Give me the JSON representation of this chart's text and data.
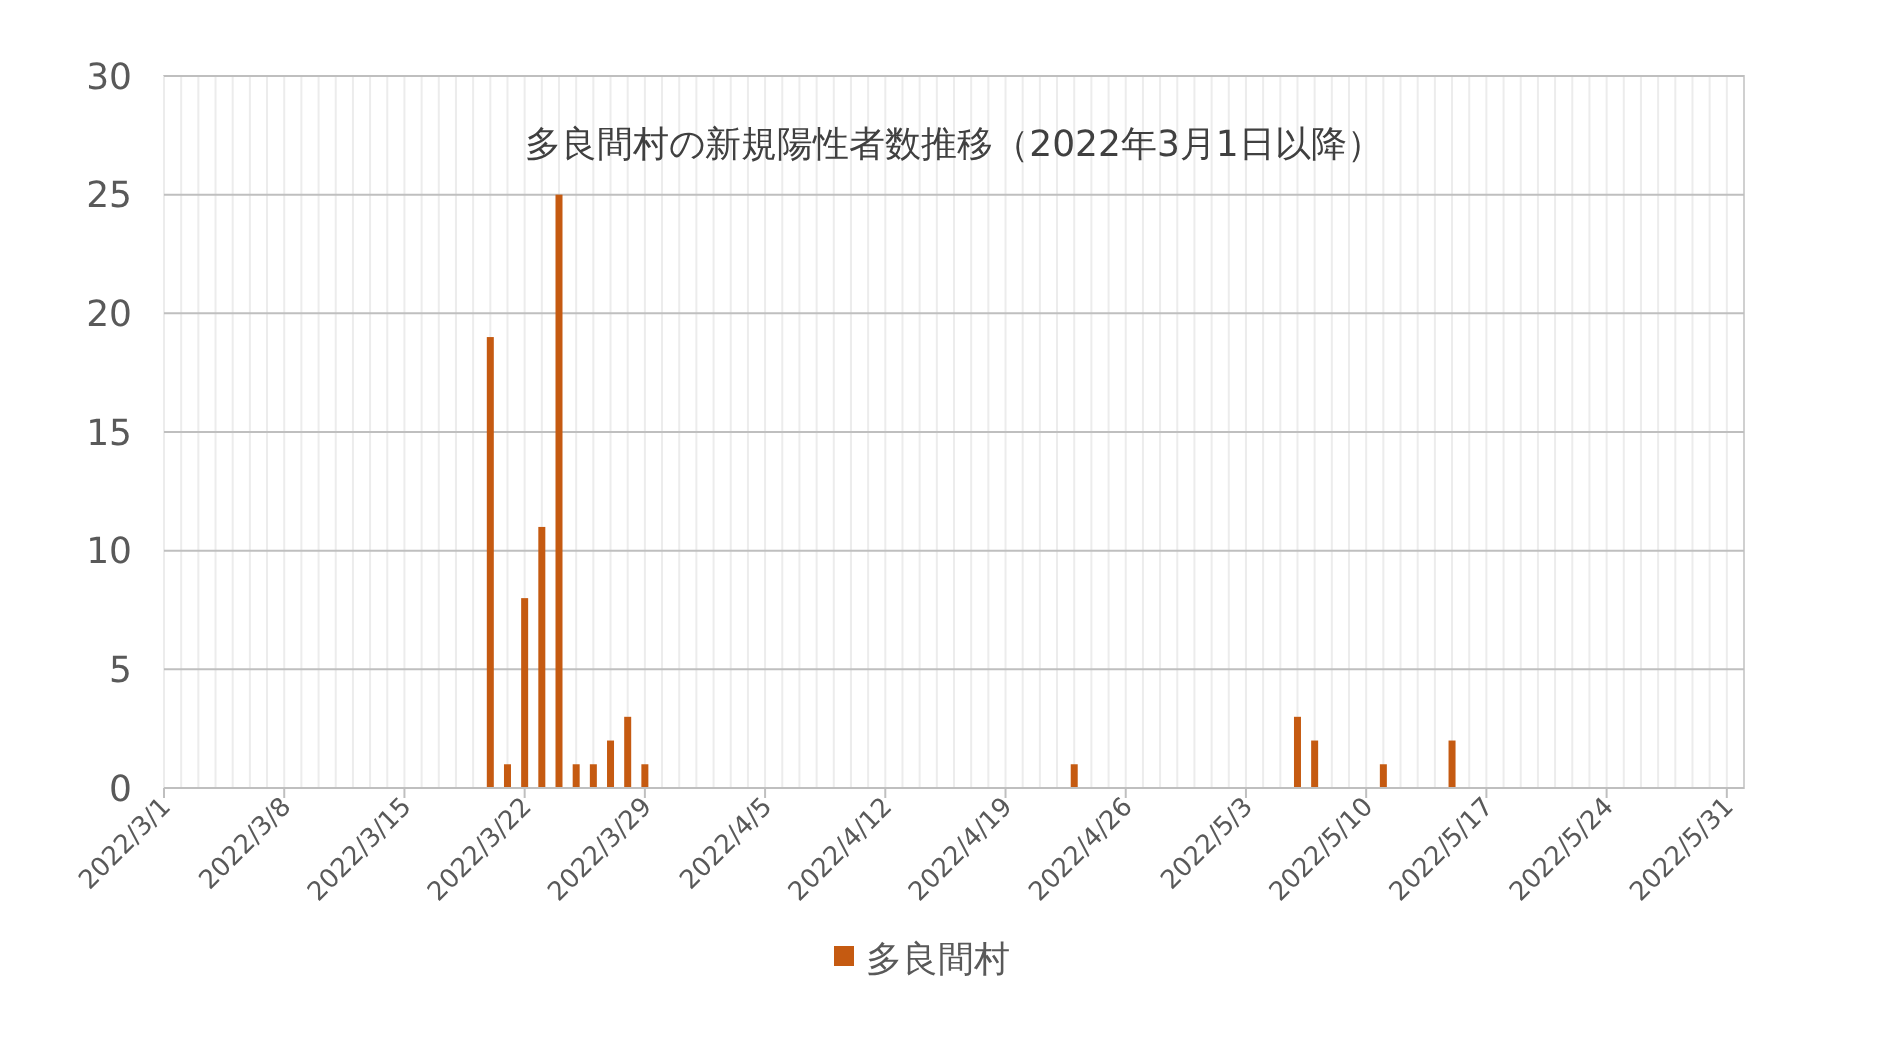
{
  "chart_data": {
    "type": "bar",
    "title": "多良間村の新規陽性者数推移（2022年3月1日以降）",
    "x": [
      "2022-03-20",
      "2022-03-21",
      "2022-03-22",
      "2022-03-23",
      "2022-03-24",
      "2022-03-25",
      "2022-03-26",
      "2022-03-27",
      "2022-03-28",
      "2022-03-29",
      "2022-04-23",
      "2022-05-06",
      "2022-05-07",
      "2022-05-11",
      "2022-05-15"
    ],
    "series": [
      {
        "name": "多良間村",
        "color": "#c55a11",
        "values": [
          19,
          1,
          8,
          11,
          25,
          1,
          1,
          2,
          3,
          1,
          1,
          3,
          2,
          1,
          2
        ]
      }
    ],
    "xlim": [
      "2022-03-01",
      "2022-06-01"
    ],
    "xticks": [
      {
        "value": "2022-03-01",
        "label": "2022/3/1"
      },
      {
        "value": "2022-03-08",
        "label": "2022/3/8"
      },
      {
        "value": "2022-03-15",
        "label": "2022/3/15"
      },
      {
        "value": "2022-03-22",
        "label": "2022/3/22"
      },
      {
        "value": "2022-03-29",
        "label": "2022/3/29"
      },
      {
        "value": "2022-04-05",
        "label": "2022/4/5"
      },
      {
        "value": "2022-04-12",
        "label": "2022/4/12"
      },
      {
        "value": "2022-04-19",
        "label": "2022/4/19"
      },
      {
        "value": "2022-04-26",
        "label": "2022/4/26"
      },
      {
        "value": "2022-05-03",
        "label": "2022/5/3"
      },
      {
        "value": "2022-05-10",
        "label": "2022/5/10"
      },
      {
        "value": "2022-05-17",
        "label": "2022/5/17"
      },
      {
        "value": "2022-05-24",
        "label": "2022/5/24"
      },
      {
        "value": "2022-05-31",
        "label": "2022/5/31"
      }
    ],
    "ylim": [
      0,
      30
    ],
    "yticks": [
      0,
      5,
      10,
      15,
      20,
      25,
      30
    ],
    "grid": true,
    "legend": "bottom"
  }
}
